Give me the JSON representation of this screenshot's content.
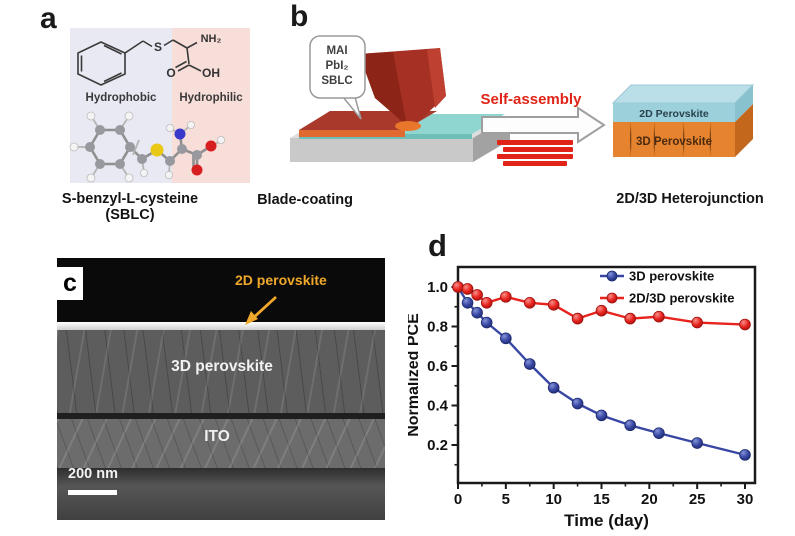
{
  "figure": {
    "panel_a": {
      "label": "a",
      "hydrophobic_label": "Hydrophobic",
      "hydrophilic_label": "Hydrophilic",
      "caption": "S-benzyl-L-cysteine (SBLC)",
      "atom_labels": {
        "nh2": "NH₂",
        "s": "S",
        "o": "O",
        "oh": "OH"
      },
      "colors": {
        "hydrophobic_bg": "#e9e9f3",
        "hydrophilic_bg": "#f8ded9"
      }
    },
    "panel_b": {
      "label": "b",
      "bubble_lines": [
        "MAI",
        "PbI₂",
        "SBLC"
      ],
      "caption_left": "Blade-coating",
      "arrow_label": "Self-assembly",
      "stack_top_label": "2D Perovskite",
      "stack_bottom_label": "3D Perovskite",
      "caption_right": "2D/3D Heterojunction",
      "colors": {
        "accent_red": "#e02418",
        "layer_2d": "#9cd0da",
        "layer_3d": "#e5832e"
      }
    },
    "panel_c": {
      "label": "c",
      "annotation_top": "2D perovskite",
      "annotation_mid": "3D perovskite",
      "annotation_bottom": "ITO",
      "scale_bar_label": "200 nm",
      "annotation_color": "#f0a82a"
    },
    "panel_d": {
      "label": "d"
    }
  },
  "chart_data": {
    "type": "line",
    "title": "",
    "xlabel": "Time (day)",
    "ylabel": "Normalized PCE",
    "xlim": [
      0,
      31
    ],
    "ylim": [
      0.0,
      1.12
    ],
    "x_ticks": [
      0,
      5,
      10,
      15,
      20,
      25,
      30
    ],
    "y_ticks": [
      0.2,
      0.4,
      0.6,
      0.8,
      1.0
    ],
    "grid": false,
    "legend_position": "top-right-inside",
    "x": [
      0,
      1,
      2,
      3,
      5,
      7.5,
      10,
      12.5,
      15,
      18,
      21,
      25,
      30
    ],
    "series": [
      {
        "name": "3D perovskite",
        "color": "#3847a3",
        "marker_light": "#8493d8",
        "marker_dark": "#1d2a6d",
        "values": [
          1.0,
          0.92,
          0.87,
          0.82,
          0.74,
          0.61,
          0.49,
          0.41,
          0.35,
          0.3,
          0.26,
          0.21,
          0.15
        ]
      },
      {
        "name": "2D/3D perovskite",
        "color": "#e8231e",
        "marker_light": "#f79089",
        "marker_dark": "#9e120e",
        "values": [
          1.0,
          0.99,
          0.96,
          0.92,
          0.95,
          0.92,
          0.91,
          0.84,
          0.88,
          0.84,
          0.85,
          0.82,
          0.81
        ]
      }
    ]
  }
}
